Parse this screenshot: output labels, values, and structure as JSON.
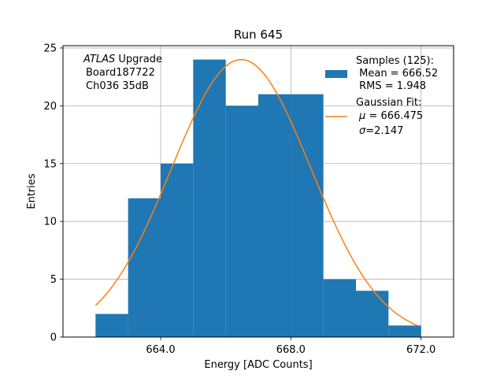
{
  "chart_data": {
    "type": "bar",
    "title": "Run 645",
    "xlabel": "Energy [ADC Counts]",
    "ylabel": "Entries",
    "xlim": [
      661.0,
      673.0
    ],
    "ylim": [
      0,
      25.2
    ],
    "grid": true,
    "xticks": [
      664.0,
      668.0,
      672.0
    ],
    "xtick_labels": [
      "664.0",
      "668.0",
      "672.0"
    ],
    "yticks": [
      0,
      5,
      10,
      15,
      20,
      25
    ],
    "ytick_labels": [
      "0",
      "5",
      "10",
      "15",
      "20",
      "25"
    ],
    "annotation": {
      "experiment": "ATLAS",
      "suffix": " Upgrade",
      "board": "Board187722",
      "channel": "Ch036 35dB"
    },
    "histogram": {
      "name": "Samples (125):",
      "color": "#1f77b4",
      "bins": [
        {
          "x0": 662.0,
          "x1": 663.0,
          "count": 2
        },
        {
          "x0": 663.0,
          "x1": 664.0,
          "count": 12
        },
        {
          "x0": 664.0,
          "x1": 665.0,
          "count": 15
        },
        {
          "x0": 665.0,
          "x1": 666.0,
          "count": 24
        },
        {
          "x0": 666.0,
          "x1": 667.0,
          "count": 20
        },
        {
          "x0": 667.0,
          "x1": 668.0,
          "count": 21
        },
        {
          "x0": 668.0,
          "x1": 669.0,
          "count": 21
        },
        {
          "x0": 669.0,
          "x1": 670.0,
          "count": 5
        },
        {
          "x0": 670.0,
          "x1": 671.0,
          "count": 4
        },
        {
          "x0": 671.0,
          "x1": 672.0,
          "count": 1
        }
      ]
    },
    "fit": {
      "type": "gaussian",
      "color": "#ff7f0e",
      "mu": 666.475,
      "sigma": 2.147,
      "amplitude": 24.0,
      "x_range": [
        662.0,
        671.9
      ]
    },
    "legend": {
      "position": "top-right",
      "samples_title": "Samples (125):",
      "mean_text": " Mean = 666.52",
      "rms_text": " RMS = 1.948",
      "fit_title": "Gaussian Fit:",
      "mu_symbol": "μ",
      "mu_value_text": " = 666.475",
      "sigma_symbol": "σ",
      "sigma_value_text": "=2.147"
    }
  }
}
